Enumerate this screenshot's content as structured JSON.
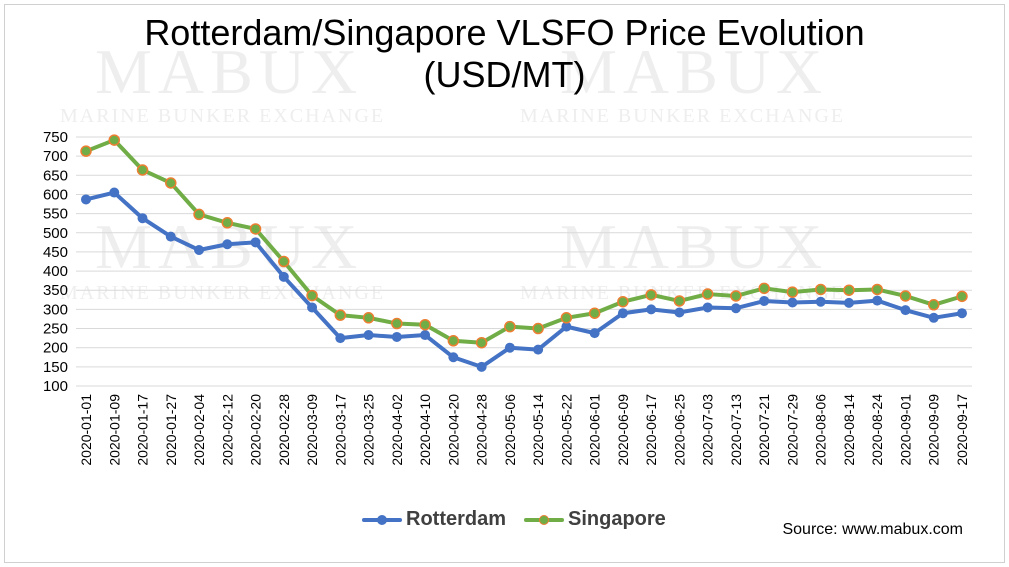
{
  "watermark": {
    "brand": "MABUX",
    "tagline": "MARINE BUNKER EXCHANGE"
  },
  "title_line1": "Rotterdam/Singapore VLSFO Price Evolution",
  "title_line2": "(USD/MT)",
  "source": "Source: www.mabux.com",
  "colors": {
    "rotterdam": "#4472C4",
    "singapore": "#70AD47",
    "singapore_marker_edge": "#ED7D31",
    "grid": "#d9d9d9",
    "axis_text": "#404040"
  },
  "chart_data": {
    "type": "line",
    "title": "Rotterdam/Singapore VLSFO Price Evolution (USD/MT)",
    "xlabel": "",
    "ylabel": "",
    "ylim": [
      100,
      750
    ],
    "yticks": [
      100,
      150,
      200,
      250,
      300,
      350,
      400,
      450,
      500,
      550,
      600,
      650,
      700,
      750
    ],
    "grid": true,
    "legend_position": "bottom",
    "categories": [
      "2020-01-01",
      "2020-01-09",
      "2020-01-17",
      "2020-01-27",
      "2020-02-04",
      "2020-02-12",
      "2020-02-20",
      "2020-02-28",
      "2020-03-09",
      "2020-03-17",
      "2020-03-25",
      "2020-04-02",
      "2020-04-10",
      "2020-04-20",
      "2020-04-28",
      "2020-05-06",
      "2020-05-14",
      "2020-05-22",
      "2020-06-01",
      "2020-06-09",
      "2020-06-17",
      "2020-06-25",
      "2020-07-03",
      "2020-07-13",
      "2020-07-21",
      "2020-07-29",
      "2020-08-06",
      "2020-08-14",
      "2020-08-24",
      "2020-09-01",
      "2020-09-09",
      "2020-09-17"
    ],
    "series": [
      {
        "name": "Rotterdam",
        "color": "#4472C4",
        "values": [
          587,
          605,
          538,
          490,
          455,
          470,
          475,
          385,
          305,
          225,
          233,
          228,
          233,
          175,
          150,
          200,
          195,
          255,
          238,
          290,
          300,
          292,
          305,
          303,
          322,
          318,
          320,
          317,
          323,
          298,
          278,
          290
        ]
      },
      {
        "name": "Singapore",
        "color": "#70AD47",
        "values": [
          713,
          742,
          664,
          630,
          548,
          526,
          510,
          425,
          336,
          285,
          278,
          263,
          260,
          218,
          213,
          255,
          250,
          278,
          290,
          320,
          338,
          322,
          340,
          335,
          355,
          345,
          352,
          350,
          352,
          335,
          312,
          334
        ]
      }
    ]
  }
}
